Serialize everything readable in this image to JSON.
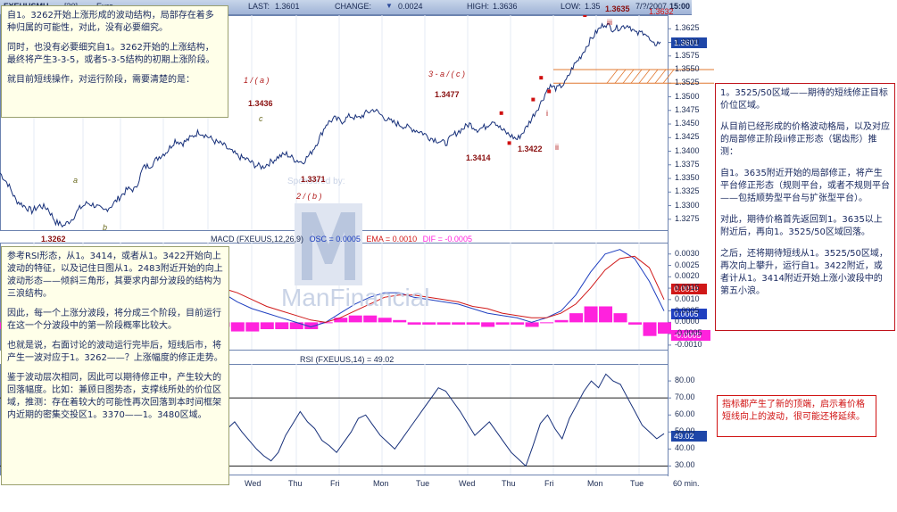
{
  "header": {
    "symbol": "FXEUUSMU",
    "interval": "[30]",
    "name": "Euro",
    "last_label": "LAST:",
    "last_value": "1.3601",
    "change_label": "CHANGE:",
    "change_value": "0.0024",
    "high_label": "HIGH:",
    "high_value": "1.3636",
    "low_label": "LOW:",
    "low_value": "1.35",
    "date": "7/?/2007",
    "time": "15:00"
  },
  "price_tag": "1.3601",
  "watermark": {
    "sponsor": "Sponsored by:",
    "brand": "ManFinancial"
  },
  "wave_labels": {
    "w1a": "1 / ( a )",
    "w2b": "2 / ( b )",
    "w3ac": "3 - a / ( c )",
    "a": "a",
    "b": "b",
    "c": "c",
    "i": "i",
    "ii": "ii",
    "iii": "iii"
  },
  "price_labels": {
    "p1": "1.3262",
    "p2": "1.3436",
    "p3": "1.3371",
    "p4": "1.3477",
    "p5": "1.3414",
    "p6": "1.3422",
    "p7": "1.3635",
    "p8": "1.3632"
  },
  "macd": {
    "title": "MACD (FXEUUS,12,26,9)",
    "osc_label": "OSC = 0.0005",
    "ema_label": "EMA = 0.0010",
    "dif_label": "DIF = -0.0005",
    "tag_osc": "0.0005",
    "tag_dif": "-0.0005",
    "tag_ema": "0.0010",
    "colors": {
      "osc": "#2040c0",
      "ema": "#d01818",
      "hist": "#ff22dd"
    }
  },
  "rsi": {
    "title": "RSI (FXEUUS,14) = 49.02",
    "tag": "49.02"
  },
  "time_axis": {
    "labels": [
      "Wed",
      "Thu",
      "Fri",
      "Mon",
      "Tue",
      "Wed",
      "Thu",
      "Fri",
      "Mon",
      "Tue"
    ],
    "unit": "60 min."
  },
  "left_box_top": {
    "paragraphs": [
      "自1。3262开始上涨形成的波动结构，局部存在着多种归属的可能性，对此，没有必要细究。",
      "同时，也没有必要细究自1。3262开始的上涨结构，最终将产生3-3-5，或者5-3-5结构的初期上涨阶段。",
      "就目前短线操作，对运行阶段，需要清楚的是："
    ]
  },
  "left_box_bottom": {
    "paragraphs": [
      "参考RSI形态，从1。3414，或者从1。3422开始向上波动的特征，以及记住日图从1。2483附近开始的向上波动形态——倾斜三角形，其要求内部分波段的结构为三浪结构。",
      "因此，每一个上涨分波段，将分成三个阶段，目前运行在这一个分波段中的第一阶段概率比较大。",
      "也就是说，右面讨论的波动运行完毕后，短线后市，将产生一波对应于1。3262——？上涨幅度的修正走势。",
      "鉴于波动层次相同，因此可以期待修正中，产生较大的回落幅度。比如：兼顾日图势态，支撑线所处的价位区域，推测：存在着较大的可能性再次回落到本时间框架内近期的密集交投区1。3370——1。3480区域。"
    ]
  },
  "right_box": {
    "paragraphs": [
      "1。3525/50区域——期待的短线修正目标价位区域。",
      "从目前已经形成的价格波动格局，以及对应的局部修正阶段ii修正形态（锯齿形）推测：",
      "自1。3635附近开始的局部修正，将产生平台修正形态（规则平台，或者不规则平台——包括顺势型平台与扩张型平台）。",
      "对此，期待价格首先返回到1。3635以上附近后，再向1。3525/50区域回落。",
      "之后，还将期待短线从1。3525/50区域，再次向上攀升，运行自1。3422附近，或者计从1。3414附近开始上涨小波段中的第五小浪。"
    ]
  },
  "note_box": {
    "text": "指标都产生了新的顶端，启示着价格短线向上的波动，很可能还将延续。"
  },
  "chart_data": [
    {
      "type": "line",
      "title": "FXEUUSMU [30] Euro",
      "ylim": [
        1.3255,
        1.365
      ],
      "yticks": [
        1.3275,
        1.33,
        1.3325,
        1.335,
        1.3375,
        1.34,
        1.3425,
        1.345,
        1.3475,
        1.35,
        1.3525,
        1.355,
        1.3575,
        1.36,
        1.3625
      ],
      "ytick_labels": [
        "1.3275",
        "1.3300",
        "1.3325",
        "1.3350",
        "1.3375",
        "1.3400",
        "1.3425",
        "1.3450",
        "1.3475",
        "1.3500",
        "1.3525",
        "1.3550",
        "1.3575",
        "1.3600",
        "1.3625"
      ],
      "anchors": [
        [
          0,
          1.336
        ],
        [
          2,
          1.334
        ],
        [
          4,
          1.331
        ],
        [
          6,
          1.33
        ],
        [
          8,
          1.329
        ],
        [
          10,
          1.33
        ],
        [
          12,
          1.3295
        ],
        [
          14,
          1.327
        ],
        [
          16,
          1.3263
        ],
        [
          18,
          1.3275
        ],
        [
          20,
          1.3295
        ],
        [
          22,
          1.3305
        ],
        [
          24,
          1.33
        ],
        [
          26,
          1.329
        ],
        [
          28,
          1.33
        ],
        [
          30,
          1.3315
        ],
        [
          32,
          1.333
        ],
        [
          34,
          1.333
        ],
        [
          36,
          1.337
        ],
        [
          38,
          1.3375
        ],
        [
          40,
          1.339
        ],
        [
          42,
          1.34
        ],
        [
          44,
          1.342
        ],
        [
          46,
          1.3415
        ],
        [
          48,
          1.3425
        ],
        [
          50,
          1.3436
        ],
        [
          52,
          1.3428
        ],
        [
          54,
          1.3418
        ],
        [
          56,
          1.3412
        ],
        [
          58,
          1.34
        ],
        [
          60,
          1.339
        ],
        [
          62,
          1.3385
        ],
        [
          64,
          1.3375
        ],
        [
          66,
          1.3371
        ],
        [
          68,
          1.338
        ],
        [
          70,
          1.339
        ],
        [
          72,
          1.3395
        ],
        [
          74,
          1.3385
        ],
        [
          76,
          1.338
        ],
        [
          78,
          1.3395
        ],
        [
          80,
          1.342
        ],
        [
          82,
          1.345
        ],
        [
          84,
          1.346
        ],
        [
          86,
          1.3455
        ],
        [
          88,
          1.3465
        ],
        [
          90,
          1.346
        ],
        [
          92,
          1.347
        ],
        [
          94,
          1.3477
        ],
        [
          96,
          1.3465
        ],
        [
          98,
          1.3455
        ],
        [
          100,
          1.345
        ],
        [
          102,
          1.3445
        ],
        [
          104,
          1.344
        ],
        [
          106,
          1.3435
        ],
        [
          108,
          1.3425
        ],
        [
          110,
          1.342
        ],
        [
          112,
          1.3414
        ],
        [
          114,
          1.343
        ],
        [
          116,
          1.344
        ],
        [
          118,
          1.345
        ],
        [
          120,
          1.344
        ],
        [
          122,
          1.3445
        ],
        [
          124,
          1.3458
        ],
        [
          126,
          1.344
        ],
        [
          128,
          1.343
        ],
        [
          130,
          1.3422
        ],
        [
          132,
          1.344
        ],
        [
          134,
          1.3465
        ],
        [
          136,
          1.349
        ],
        [
          138,
          1.352
        ],
        [
          140,
          1.3515
        ],
        [
          142,
          1.3525
        ],
        [
          144,
          1.3555
        ],
        [
          146,
          1.3575
        ],
        [
          148,
          1.36
        ],
        [
          150,
          1.362
        ],
        [
          152,
          1.3635
        ],
        [
          154,
          1.3625
        ],
        [
          156,
          1.3628
        ],
        [
          158,
          1.3632
        ],
        [
          160,
          1.3615
        ],
        [
          162,
          1.362
        ],
        [
          164,
          1.3595
        ],
        [
          166,
          1.3601
        ]
      ],
      "zones": [
        1.355,
        1.3525
      ],
      "red_markers": [
        [
          126,
          1.347
        ],
        [
          128,
          1.3415
        ],
        [
          134,
          1.3495
        ],
        [
          136,
          1.3535
        ],
        [
          138,
          1.351
        ],
        [
          147,
          1.365
        ],
        [
          151,
          1.3655
        ]
      ]
    },
    {
      "type": "line",
      "title": "MACD (FXEUUS,12,26,9)",
      "ylim": [
        -0.0012,
        0.0035
      ],
      "yticks": [
        0.003,
        0.0025,
        0.002,
        0.0015,
        0.001,
        0.0005,
        0.0,
        -0.0005,
        -0.001
      ],
      "ytick_labels": [
        "0.0030",
        "0.0025",
        "0.0020",
        "0.0015",
        "0.0010",
        "0.0005",
        "0.0000",
        "-0.0005",
        "-0.0010"
      ],
      "series": [
        {
          "name": "OSC",
          "values": [
            0.0005,
            0.0003,
            0.0,
            -0.0004,
            -0.0007,
            -0.0009,
            -0.001,
            -0.0008,
            -0.0004,
            0.0,
            0.0004,
            0.0008,
            0.0012,
            0.0015,
            0.0016,
            0.0013,
            0.0009,
            0.0006,
            0.0004,
            0.0002,
            0.0,
            -0.0002,
            0.0,
            0.0004,
            0.0008,
            0.0011,
            0.0013,
            0.0013,
            0.0011,
            0.001,
            0.0009,
            0.0008,
            0.0006,
            0.0004,
            0.0003,
            0.0002,
            0.0,
            0.0002,
            0.0005,
            0.0012,
            0.0022,
            0.003,
            0.0032,
            0.0028,
            0.0018,
            0.0005
          ]
        },
        {
          "name": "EMA",
          "values": [
            0.0008,
            0.0007,
            0.0005,
            0.0002,
            -0.0001,
            -0.0004,
            -0.0006,
            -0.0007,
            -0.0006,
            -0.0004,
            -0.0001,
            0.0003,
            0.0007,
            0.0011,
            0.0014,
            0.0015,
            0.0013,
            0.001,
            0.0007,
            0.0005,
            0.0003,
            0.0001,
            0.0,
            0.0002,
            0.0005,
            0.0008,
            0.0011,
            0.0012,
            0.0012,
            0.0011,
            0.001,
            0.0009,
            0.0007,
            0.0006,
            0.0004,
            0.0003,
            0.0002,
            0.0002,
            0.0004,
            0.0008,
            0.0015,
            0.0023,
            0.0028,
            0.0029,
            0.0024,
            0.001
          ]
        },
        {
          "name": "DIF",
          "values": [
            -0.0003,
            -0.0004,
            -0.0005,
            -0.0006,
            -0.0006,
            -0.0005,
            -0.0004,
            -0.0001,
            0.0002,
            0.0004,
            0.0005,
            0.0005,
            0.0005,
            0.0004,
            0.0002,
            -0.0002,
            -0.0004,
            -0.0004,
            -0.0003,
            -0.0003,
            -0.0003,
            -0.0003,
            0.0,
            0.0002,
            0.0003,
            0.0003,
            0.0002,
            0.0001,
            -0.0001,
            -0.0001,
            -0.0001,
            -0.0001,
            -0.0001,
            -0.0002,
            -0.0001,
            -0.0001,
            -0.0002,
            0.0,
            0.0001,
            0.0004,
            0.0007,
            0.0007,
            0.0004,
            -0.0001,
            -0.0006,
            -0.0005
          ]
        }
      ]
    },
    {
      "type": "line",
      "title": "RSI (FXEUUS,14)",
      "ylim": [
        25,
        90
      ],
      "yticks": [
        80,
        70,
        60,
        50,
        40,
        30
      ],
      "ytick_labels": [
        "80.00",
        "70.00",
        "60.00",
        "50.00",
        "40.00",
        "30.00"
      ],
      "levels": [
        70,
        30
      ],
      "values": [
        38,
        42,
        46,
        44,
        50,
        55,
        60,
        52,
        48,
        62,
        70,
        78,
        75,
        60,
        55,
        48,
        44,
        40,
        36,
        45,
        52,
        50,
        44,
        38,
        46,
        58,
        80,
        66,
        60,
        55,
        48,
        52,
        56,
        50,
        45,
        40,
        36,
        33,
        38,
        48,
        55,
        62,
        56,
        52,
        45,
        42,
        38,
        44,
        50,
        58,
        60,
        54,
        48,
        44,
        40,
        46,
        52,
        58,
        64,
        70,
        76,
        74,
        68,
        62,
        55,
        48,
        52,
        56,
        50,
        44,
        38,
        34,
        30,
        42,
        55,
        60,
        52,
        46,
        58,
        66,
        74,
        80,
        76,
        84,
        80,
        78,
        70,
        62,
        54,
        50,
        46,
        49
      ]
    }
  ]
}
